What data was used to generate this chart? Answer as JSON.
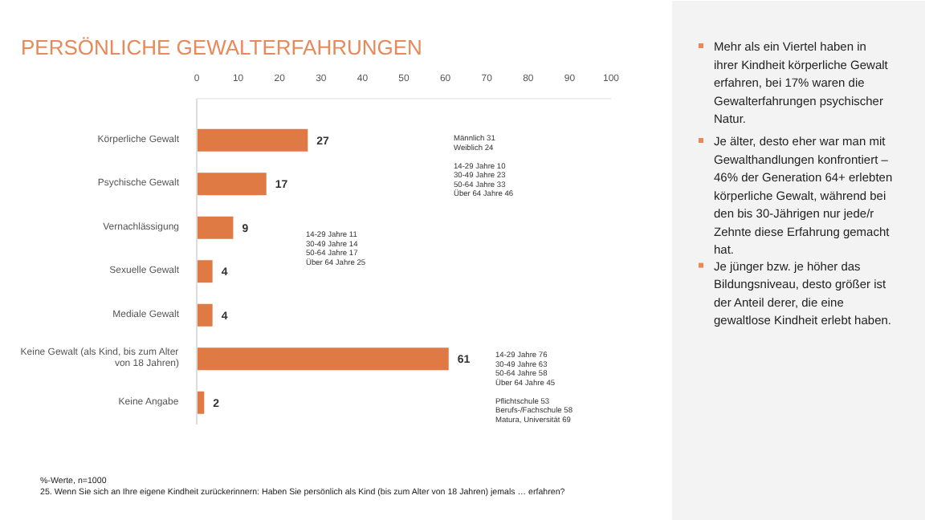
{
  "chart_data": {
    "type": "bar",
    "orientation": "horizontal",
    "title": "PERSÖNLICHE GEWALTERFAHRUNGEN",
    "categories": [
      "Körperliche Gewalt",
      "Psychische Gewalt",
      "Vernachlässigung",
      "Sexuelle Gewalt",
      "Mediale Gewalt",
      "Keine Gewalt (als Kind, bis zum Alter von 18 Jahren)",
      "Keine Angabe"
    ],
    "values": [
      27,
      17,
      9,
      4,
      4,
      61,
      2
    ],
    "color": "#e07a45",
    "data_labels": true,
    "xlim": [
      0,
      100
    ],
    "xticks": [
      0,
      10,
      20,
      30,
      40,
      50,
      60,
      70,
      80,
      90,
      100
    ],
    "grid": false,
    "annotations": [
      "Männlich 31\nWeiblich 24\n\n14-29 Jahre 10\n30-49 Jahre 23\n50-64 Jahre 33\nÜber 64 Jahre 46",
      "14-29 Jahre 11\n30-49 Jahre 14\n50-64 Jahre 17\nÜber 64 Jahre 25",
      "14-29 Jahre 76\n30-49 Jahre 63\n50-64 Jahre 58\nÜber 64 Jahre 45\n\nPflichtschule 53\nBerufs-/Fachschule 58\nMatura, Universität 69",
      "Mehr als ein Viertel haben in ihrer Kindheit körperliche Gewalt erfahren, bei 17% waren die Gewalterfahrungen psychischer Natur.",
      "Je älter, desto eher war man mit Gewalthandlungen konfrontiert – 46% der Generation 64+ erlebten körperliche Gewalt, während bei den bis 30-Jährigen nur jede/r Zehnte diese Erfahrung gemacht hat.",
      "Je jünger bzw. je höher das Bildungsniveau, desto größer ist der Anteil derer, die eine gewaltlose Kindheit erlebt haben.",
      "%-Werte, n=1000\n25. Wenn Sie sich an Ihre eigene Kindheit zurückerinnern: Haben Sie persönlich als Kind (bis zum Alter von 18 Jahren) jemals … erfahren?",
      "9"
    ]
  }
}
